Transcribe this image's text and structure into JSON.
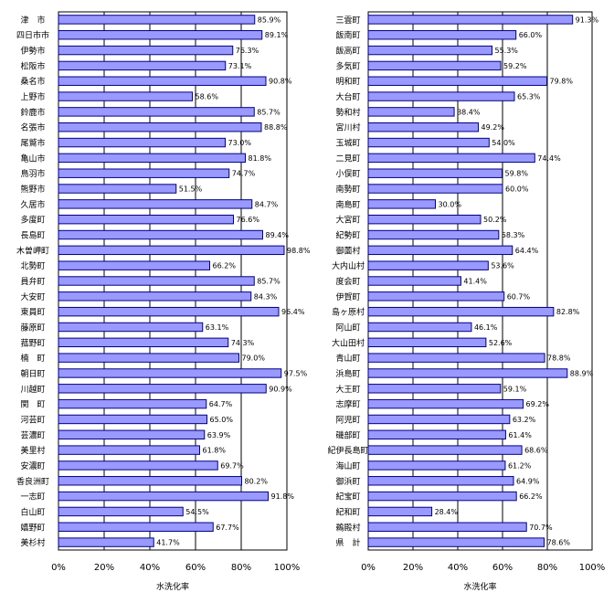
{
  "chart_data": [
    {
      "type": "bar",
      "orientation": "horizontal",
      "xlabel": "水洗化率",
      "xlim": [
        0,
        100
      ],
      "ticks": [
        "0%",
        "20%",
        "40%",
        "60%",
        "80%",
        "100%"
      ],
      "grid": "vertical",
      "categories": [
        "津　市",
        "四日市市",
        "伊勢市",
        "松阪市",
        "桑名市",
        "上野市",
        "鈴鹿市",
        "名張市",
        "尾鷲市",
        "亀山市",
        "鳥羽市",
        "熊野市",
        "久居市",
        "多度町",
        "長島町",
        "木曽岬町",
        "北勢町",
        "員弁町",
        "大安町",
        "東員町",
        "藤原町",
        "菰野町",
        "楠　町",
        "朝日町",
        "川越町",
        "関　町",
        "河芸町",
        "芸濃町",
        "美里村",
        "安濃町",
        "香良洲町",
        "一志町",
        "白山町",
        "嬉野町",
        "美杉村"
      ],
      "values": [
        85.9,
        89.1,
        76.3,
        73.1,
        90.8,
        58.6,
        85.7,
        88.8,
        73.0,
        81.8,
        74.7,
        51.5,
        84.7,
        76.6,
        89.4,
        98.8,
        66.2,
        85.7,
        84.3,
        96.4,
        63.1,
        74.3,
        79.0,
        97.5,
        90.9,
        64.7,
        65.0,
        63.9,
        61.8,
        69.7,
        80.2,
        91.8,
        54.5,
        67.7,
        41.7
      ],
      "labels": [
        "85.9%",
        "89.1%",
        "76.3%",
        "73.1%",
        "90.8%",
        "58.6%",
        "85.7%",
        "88.8%",
        "73.0%",
        "81.8%",
        "74.7%",
        "51.5%",
        "84.7%",
        "76.6%",
        "89.4%",
        "98.8%",
        "66.2%",
        "85.7%",
        "84.3%",
        "96.4%",
        "63.1%",
        "74.3%",
        "79.0%",
        "97.5%",
        "90.9%",
        "64.7%",
        "65.0%",
        "63.9%",
        "61.8%",
        "69.7%",
        "80.2%",
        "91.8%",
        "54.5%",
        "67.7%",
        "41.7%"
      ]
    },
    {
      "type": "bar",
      "orientation": "horizontal",
      "xlabel": "水洗化率",
      "xlim": [
        0,
        100
      ],
      "ticks": [
        "0%",
        "20%",
        "40%",
        "60%",
        "80%",
        "100%"
      ],
      "grid": "vertical",
      "categories": [
        "三雲町",
        "飯南町",
        "飯高町",
        "多気町",
        "明和町",
        "大台町",
        "勢和村",
        "宮川村",
        "玉城町",
        "二見町",
        "小俣町",
        "南勢町",
        "南島町",
        "大宮町",
        "紀勢町",
        "御薗村",
        "大内山村",
        "度会町",
        "伊賀町",
        "島ヶ原村",
        "阿山町",
        "大山田村",
        "青山町",
        "浜島町",
        "大王町",
        "志摩町",
        "阿児町",
        "磯部町",
        "紀伊長島町",
        "海山町",
        "御浜町",
        "紀宝町",
        "紀和町",
        "鵜殿村",
        "県　計"
      ],
      "values": [
        91.3,
        66.0,
        55.3,
        59.2,
        79.8,
        65.3,
        38.4,
        49.2,
        54.0,
        74.4,
        59.8,
        60.0,
        30.0,
        50.2,
        58.3,
        64.4,
        53.6,
        41.4,
        60.7,
        82.8,
        46.1,
        52.6,
        78.8,
        88.9,
        59.1,
        69.2,
        63.2,
        61.4,
        68.6,
        61.2,
        64.9,
        66.2,
        28.4,
        70.7,
        78.6
      ],
      "labels": [
        "91.3%",
        "66.0%",
        "55.3%",
        "59.2%",
        "79.8%",
        "65.3%",
        "38.4%",
        "49.2%",
        "54.0%",
        "74.4%",
        "59.8%",
        "60.0%",
        "30.0%",
        "50.2%",
        "58.3%",
        "64.4%",
        "53.6%",
        "41.4%",
        "60.7%",
        "82.8%",
        "46.1%",
        "52.6%",
        "78.8%",
        "88.9%",
        "59.1%",
        "69.2%",
        "63.2%",
        "61.4%",
        "68.6%",
        "61.2%",
        "64.9%",
        "66.2%",
        "28.4%",
        "70.7%",
        "78.6%"
      ]
    }
  ],
  "colors": {
    "bar_fill": "#9999ff",
    "bar_stroke": "#000080",
    "grid": "#000000",
    "background": "#ffffff"
  }
}
